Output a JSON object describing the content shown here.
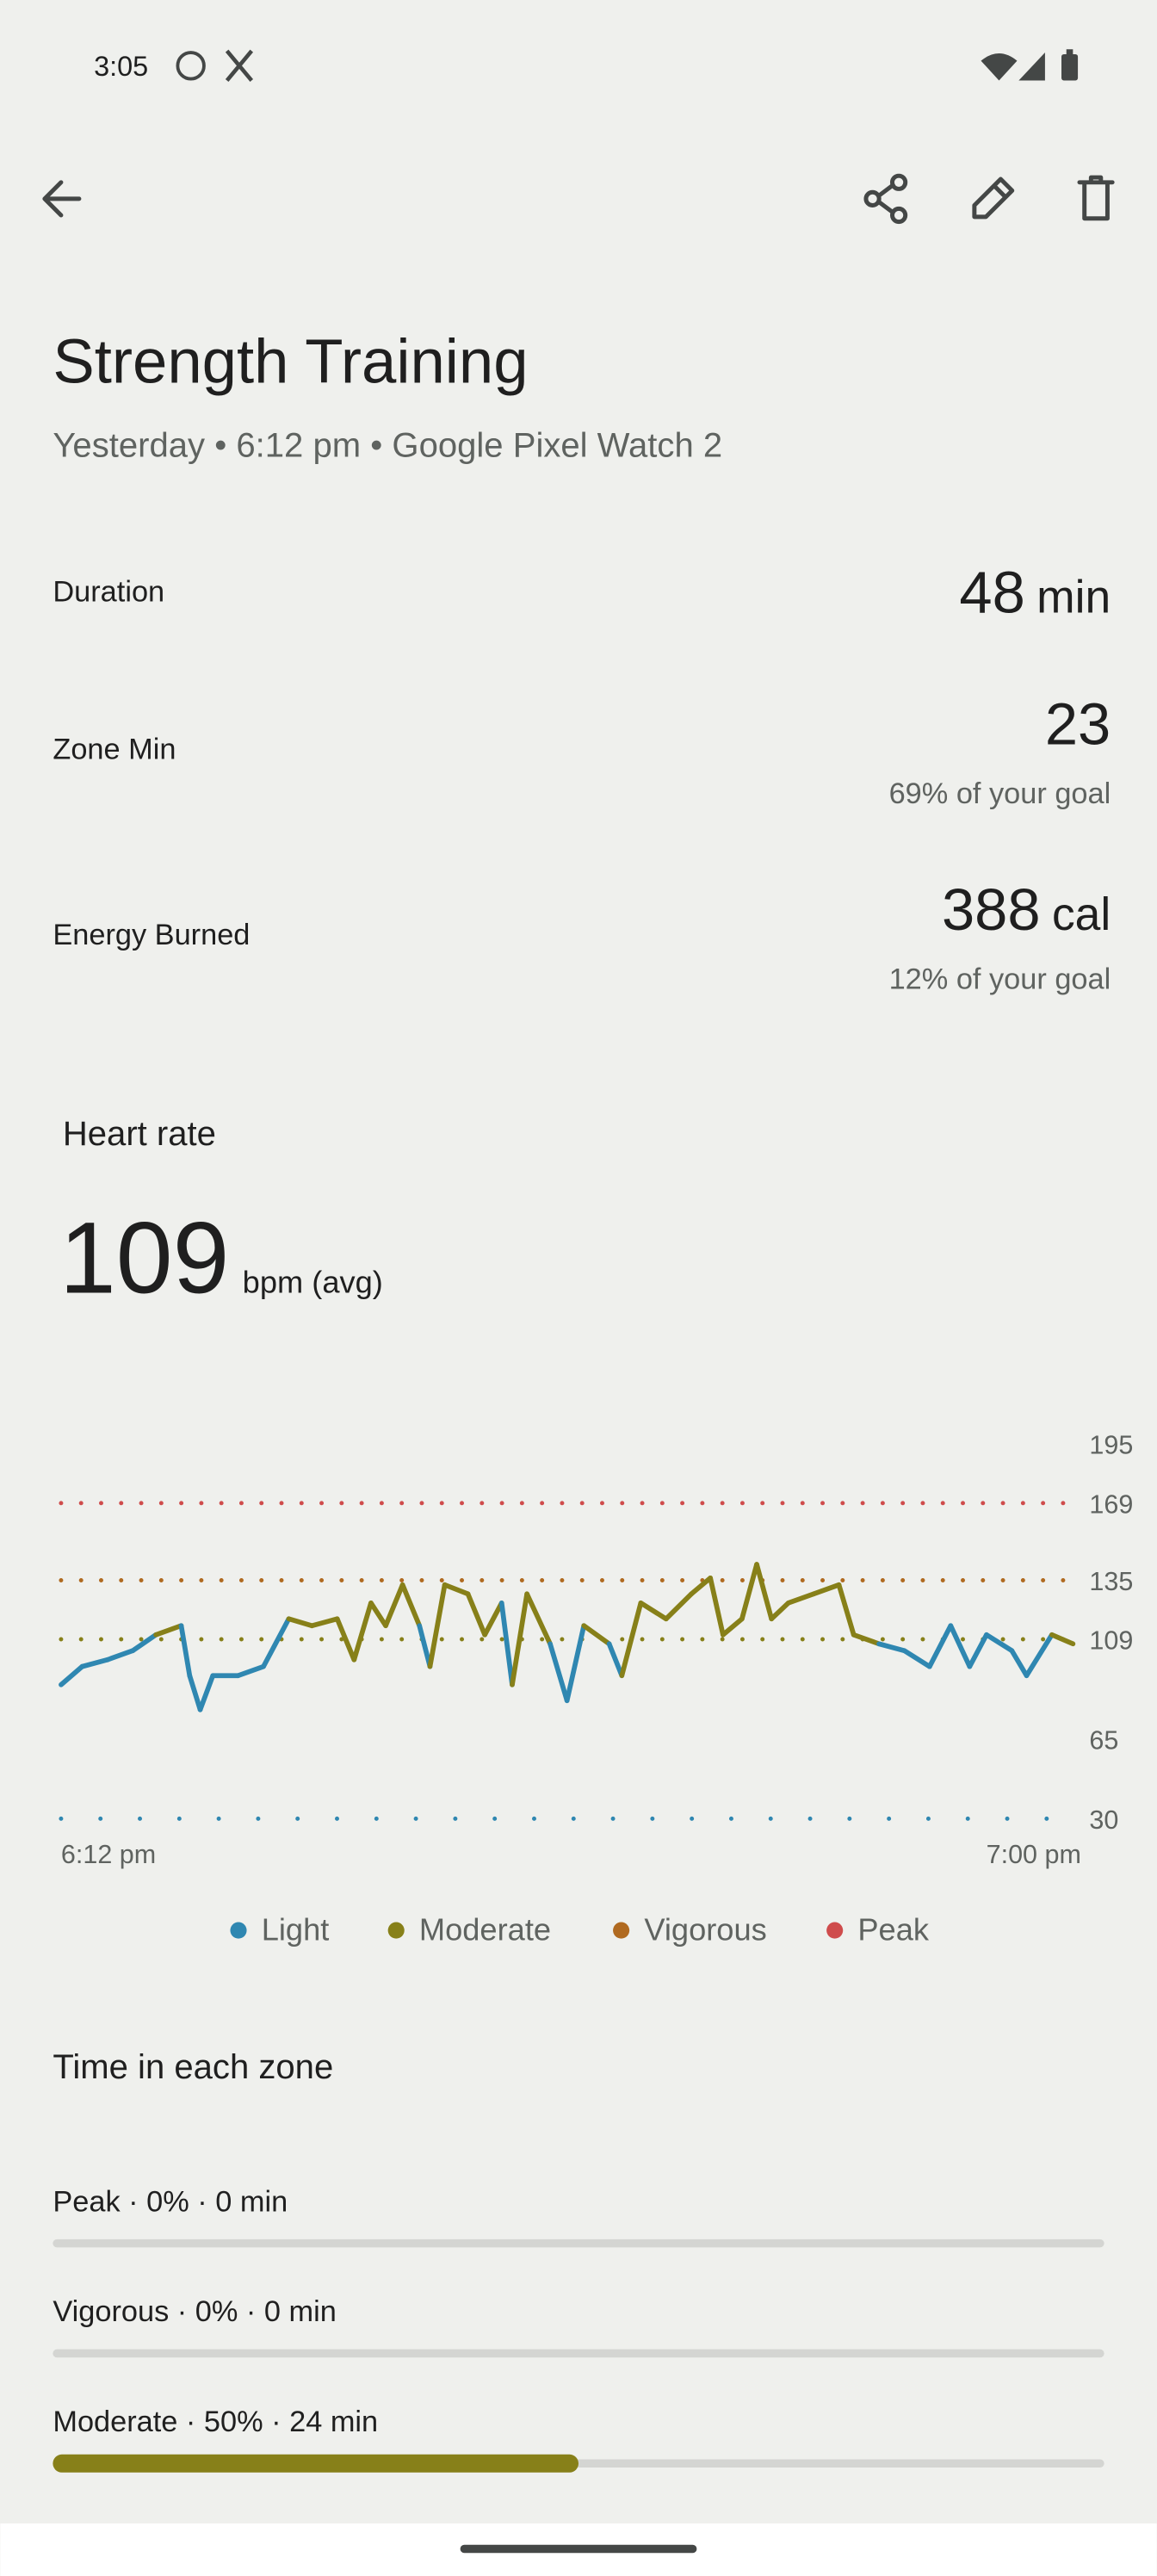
{
  "status_bar": {
    "time": "3:05"
  },
  "header": {
    "title": "Strength Training",
    "subtitle": "Yesterday • 6:12 pm • Google Pixel Watch 2"
  },
  "stats": [
    {
      "label": "Duration",
      "value": 48,
      "unit": "min"
    },
    {
      "label": "Zone Min",
      "value": 23,
      "note": "69% of your goal"
    },
    {
      "label": "Energy Burned",
      "value": 388,
      "unit": "cal",
      "note": "12% of your goal"
    }
  ],
  "chart_data": {
    "type": "line",
    "title": "Heart rate",
    "average": 109,
    "average_unit": "bpm (avg)",
    "x": [
      0,
      1,
      2.2,
      3.4,
      4.5,
      5.7,
      6.1,
      6.6,
      7.2,
      8.4,
      9.6,
      10.8,
      11.9,
      13.1,
      13.9,
      14.7,
      15.4,
      16.2,
      17,
      17.5,
      18.2,
      19.3,
      20.1,
      20.9,
      21.4,
      22.1,
      23.2,
      24,
      24.8,
      26,
      26.6,
      27.5,
      28.7,
      29.9,
      30.8,
      31.4,
      32.3,
      33,
      33.7,
      34.5,
      35.7,
      36.9,
      37.6,
      38.8,
      40,
      41.2,
      42.2,
      43.1,
      43.9,
      45.1,
      45.8,
      47,
      48
    ],
    "values": [
      89,
      97,
      100,
      104,
      111,
      115,
      93,
      78,
      93,
      93,
      97,
      118,
      115,
      118,
      100,
      125,
      115,
      133,
      115,
      97,
      133,
      129,
      111,
      125,
      89,
      129,
      107,
      82,
      115,
      107,
      93,
      125,
      118,
      129,
      136,
      111,
      118,
      142,
      118,
      125,
      129,
      133,
      111,
      107,
      104,
      97,
      115,
      97,
      111,
      104,
      93,
      111,
      107
    ],
    "xlim": [
      0,
      48
    ],
    "xticks": [
      {
        "value": 0,
        "label": "6:12 pm"
      },
      {
        "value": 48,
        "label": "7:00 pm"
      }
    ],
    "ylim": [
      30,
      195
    ],
    "yticks": [
      30,
      65,
      109,
      135,
      169,
      195
    ],
    "zones": [
      {
        "name": "Light",
        "color": "#2f87b1",
        "from": 30
      },
      {
        "name": "Moderate",
        "color": "#878019",
        "from": 109
      },
      {
        "name": "Vigorous",
        "color": "#b06a20",
        "from": 135
      },
      {
        "name": "Peak",
        "color": "#cf4c4c",
        "from": 169
      }
    ]
  },
  "time_in_zones": {
    "title": "Time in each zone",
    "rows": [
      {
        "label": "Peak · 0% · 0 min",
        "percent": 0,
        "color": "#cf4c4c"
      },
      {
        "label": "Vigorous · 0% · 0 min",
        "percent": 0,
        "color": "#b06a20"
      },
      {
        "label": "Moderate · 50% · 24 min",
        "percent": 50,
        "color": "#878019"
      }
    ]
  }
}
